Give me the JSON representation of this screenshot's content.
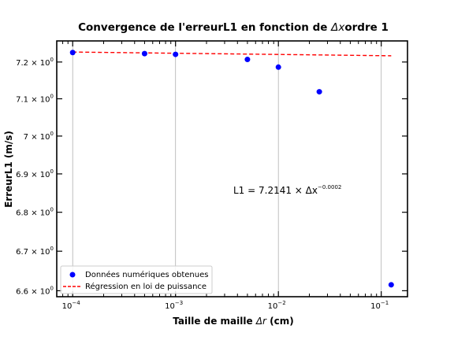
{
  "chart_data": {
    "type": "scatter",
    "title_prefix": "Convergence de l'erreurL1 en fonction de ",
    "title_math": "Δx",
    "title_suffix": "ordre 1",
    "xlabel_prefix": "Taille de maille ",
    "xlabel_math": "Δr",
    "xlabel_suffix": " (cm)",
    "ylabel": "ErreurL1 (m/s)",
    "xscale": "log",
    "yscale": "log",
    "xlim": [
      7e-05,
      0.18
    ],
    "ylim": [
      6.585,
      7.258
    ],
    "grid": "vertical-major",
    "x_ticks": [
      {
        "value": 0.0001,
        "base": "10",
        "exp": "−4"
      },
      {
        "value": 0.001,
        "base": "10",
        "exp": "−3"
      },
      {
        "value": 0.01,
        "base": "10",
        "exp": "−2"
      },
      {
        "value": 0.1,
        "base": "10",
        "exp": "−1"
      }
    ],
    "y_ticks": [
      {
        "value": 6.6,
        "mant": "6.6",
        "base": "10",
        "exp": "0"
      },
      {
        "value": 6.7,
        "mant": "6.7",
        "base": "10",
        "exp": "0"
      },
      {
        "value": 6.8,
        "mant": "6.8",
        "base": "10",
        "exp": "0"
      },
      {
        "value": 6.9,
        "mant": "6.9",
        "base": "10",
        "exp": "0"
      },
      {
        "value": 7.0,
        "mant": "7",
        "base": "10",
        "exp": "0"
      },
      {
        "value": 7.1,
        "mant": "7.1",
        "base": "10",
        "exp": "0"
      },
      {
        "value": 7.2,
        "mant": "7.2",
        "base": "10",
        "exp": "0"
      }
    ],
    "series": [
      {
        "name": "Données numériques obtenues",
        "kind": "scatter",
        "color": "#0000ff",
        "x": [
          0.0001,
          0.0005,
          0.001,
          0.005,
          0.01,
          0.025,
          0.125
        ],
        "y": [
          7.226,
          7.223,
          7.221,
          7.207,
          7.186,
          7.119,
          6.615
        ]
      },
      {
        "name": "Régression en loi de puissance",
        "kind": "line",
        "style": "dashed",
        "color": "#ff0000",
        "a": 7.2141,
        "b": -0.0002,
        "x_range": [
          0.0001,
          0.125
        ]
      }
    ],
    "annotation": {
      "prefix": "L1 = 7.2141 × Δx",
      "exponent": "−0.0002"
    },
    "legend_position": "lower-left"
  }
}
